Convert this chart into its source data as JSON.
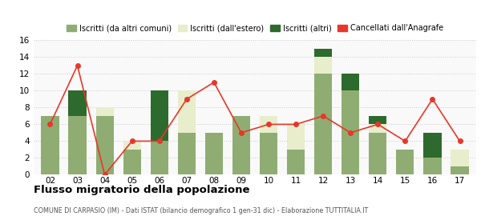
{
  "years": [
    "02",
    "03",
    "04",
    "05",
    "06",
    "07",
    "08",
    "09",
    "10",
    "11",
    "12",
    "13",
    "14",
    "15",
    "16",
    "17"
  ],
  "iscritti_comuni": [
    7,
    7,
    7,
    3,
    4,
    5,
    5,
    7,
    5,
    3,
    12,
    10,
    5,
    3,
    2,
    1
  ],
  "iscritti_estero": [
    0,
    0,
    1,
    1,
    0,
    5,
    0,
    0,
    2,
    3,
    2,
    0,
    1,
    0,
    0,
    2
  ],
  "iscritti_altri": [
    0,
    3,
    0,
    0,
    6,
    0,
    0,
    0,
    0,
    0,
    1,
    2,
    1,
    0,
    3,
    0
  ],
  "cancellati": [
    6,
    13,
    0,
    4,
    4,
    9,
    11,
    5,
    6,
    6,
    7,
    5,
    6,
    4,
    9,
    4
  ],
  "color_comuni": "#8fad72",
  "color_estero": "#e8edcc",
  "color_altri": "#2d6a2d",
  "color_cancellati": "#e8372a",
  "color_grid": "#cccccc",
  "color_bg": "#f9f9f9",
  "ylim": [
    0,
    16
  ],
  "yticks": [
    0,
    2,
    4,
    6,
    8,
    10,
    12,
    14,
    16
  ],
  "title": "Flusso migratorio della popolazione",
  "subtitle": "COMUNE DI CARPASIO (IM) - Dati ISTAT (bilancio demografico 1 gen-31 dic) - Elaborazione TUTTITALIA.IT",
  "legend_labels": [
    "Iscritti (da altri comuni)",
    "Iscritti (dall'estero)",
    "Iscritti (altri)",
    "Cancellati dall'Anagrafe"
  ]
}
